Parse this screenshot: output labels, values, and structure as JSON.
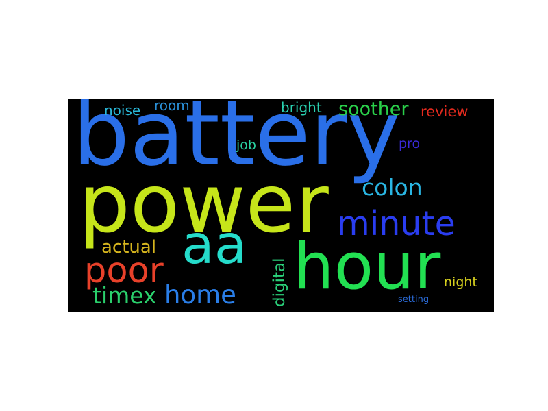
{
  "wordcloud": {
    "background": "#000000",
    "words": {
      "battery": {
        "text": "battery",
        "color": "#2a6fe8"
      },
      "power": {
        "text": "power",
        "color": "#c6e51a"
      },
      "hour": {
        "text": "hour",
        "color": "#22e052"
      },
      "aa": {
        "text": "aa",
        "color": "#25dccb"
      },
      "minute": {
        "text": "minute",
        "color": "#2a3df0"
      },
      "poor": {
        "text": "poor",
        "color": "#e8412a"
      },
      "home": {
        "text": "home",
        "color": "#2a7ee8"
      },
      "colon": {
        "text": "colon",
        "color": "#2ab6e3"
      },
      "timex": {
        "text": "timex",
        "color": "#2ad06c"
      },
      "soother": {
        "text": "soother",
        "color": "#2ad04a"
      },
      "actual": {
        "text": "actual",
        "color": "#d6b51e"
      },
      "digital": {
        "text": "digital",
        "color": "#2ad07a"
      },
      "review": {
        "text": "review",
        "color": "#e32a1e"
      },
      "noise": {
        "text": "noise",
        "color": "#2ab8d8"
      },
      "room": {
        "text": "room",
        "color": "#2a8fd6"
      },
      "bright": {
        "text": "bright",
        "color": "#2ad0b0"
      },
      "job": {
        "text": "job",
        "color": "#2ad0a0"
      },
      "pro": {
        "text": "pro",
        "color": "#3a2ad8"
      },
      "night": {
        "text": "night",
        "color": "#d6d01e"
      },
      "setting": {
        "text": "setting",
        "color": "#2a6ad6"
      }
    }
  }
}
